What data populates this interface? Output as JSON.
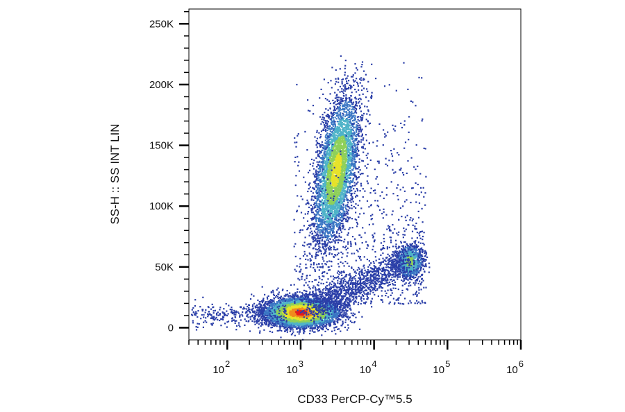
{
  "chart_data": {
    "type": "scatter",
    "title": "",
    "xlabel": "CD33 PerCP-Cy™5.5",
    "ylabel": "SS-H :: SS INT LIN",
    "x_scale": "log",
    "xlim": [
      30,
      1000000
    ],
    "ylim": [
      -10000,
      262144
    ],
    "grid": false,
    "legend": "none",
    "x_ticks": [
      {
        "base": "10",
        "exp": "2",
        "value": 100
      },
      {
        "base": "10",
        "exp": "3",
        "value": 1000
      },
      {
        "base": "10",
        "exp": "4",
        "value": 10000
      },
      {
        "base": "10",
        "exp": "5",
        "value": 100000
      },
      {
        "base": "10",
        "exp": "6",
        "value": 1000000
      }
    ],
    "y_ticks": [
      {
        "label": "0",
        "value": 0
      },
      {
        "label": "50K",
        "value": 50000
      },
      {
        "label": "100K",
        "value": 100000
      },
      {
        "label": "150K",
        "value": 150000
      },
      {
        "label": "200K",
        "value": 200000
      },
      {
        "label": "250K",
        "value": 250000
      }
    ],
    "density_colors": [
      "#2b3fa8",
      "#3a76c4",
      "#4fb3c8",
      "#8fd05a",
      "#e6e22a",
      "#f08a1e",
      "#e51b1b"
    ],
    "populations": [
      {
        "x_center": 1000,
        "y_center": 13000,
        "x_spread_decades": 0.25,
        "y_spread": 6000,
        "count": 5200,
        "peak": "#e51b1b"
      },
      {
        "x_center": 3000,
        "y_center": 130000,
        "x_spread_decades": 0.13,
        "y_spread": 30000,
        "count": 4300,
        "peak": "#e6e22a"
      },
      {
        "x_center": 30000,
        "y_center": 55000,
        "x_spread_decades": 0.09,
        "y_spread": 7000,
        "count": 900,
        "peak": "#8fd05a"
      }
    ]
  }
}
